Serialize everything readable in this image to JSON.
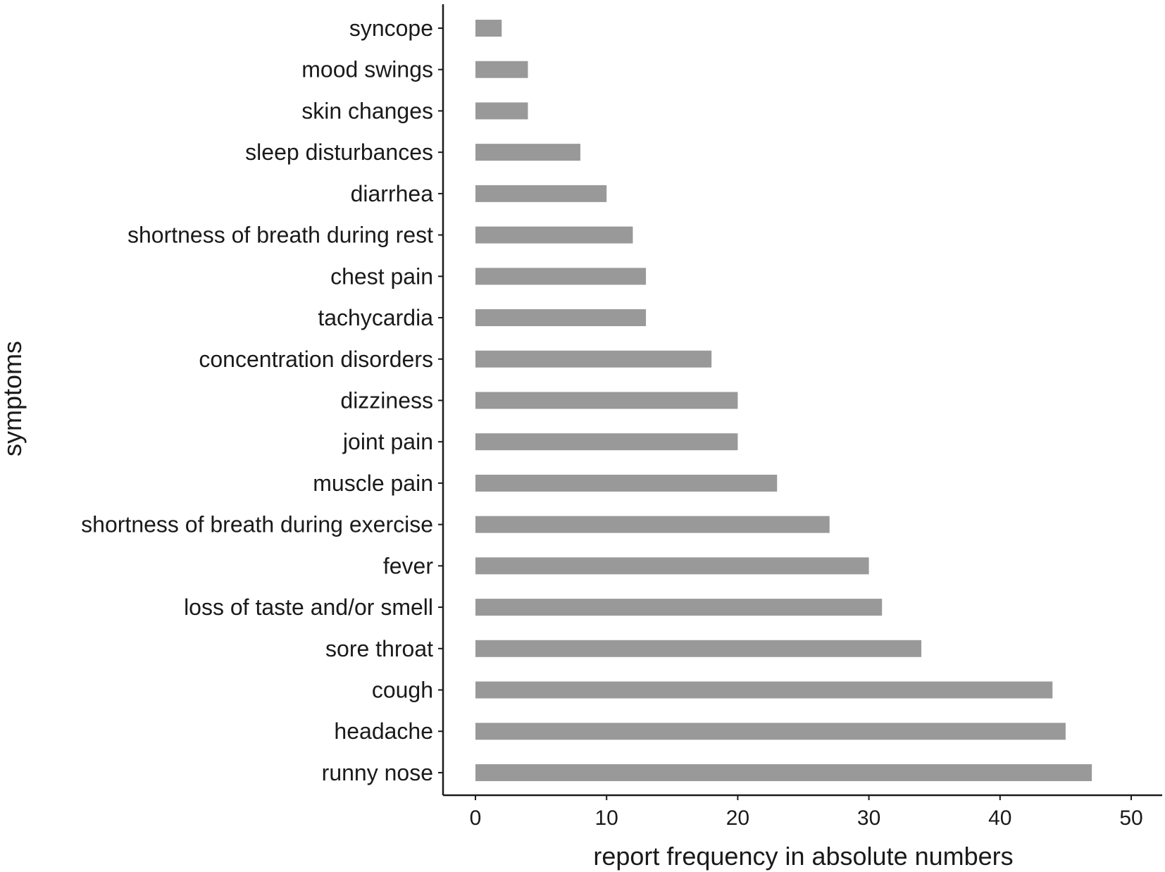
{
  "chart_data": {
    "type": "bar",
    "orientation": "horizontal",
    "categories": [
      "syncope",
      "mood swings",
      "skin changes",
      "sleep disturbances",
      "diarrhea",
      "shortness of breath during rest",
      "chest pain",
      "tachycardia",
      "concentration disorders",
      "dizziness",
      "joint pain",
      "muscle pain",
      "shortness of breath during exercise",
      "fever",
      "loss of taste and/or smell",
      "sore throat",
      "cough",
      "headache",
      "runny nose"
    ],
    "values": [
      2,
      4,
      4,
      8,
      10,
      12,
      13,
      13,
      18,
      20,
      20,
      23,
      27,
      30,
      31,
      34,
      44,
      45,
      47
    ],
    "xlabel": "report frequency in absolute numbers",
    "ylabel": "symptoms",
    "xlim": [
      0,
      50
    ],
    "xticks": [
      0,
      10,
      20,
      30,
      40,
      50
    ],
    "grid": false,
    "bar_color": "#999999",
    "axis_color": "#1a1a1a"
  }
}
